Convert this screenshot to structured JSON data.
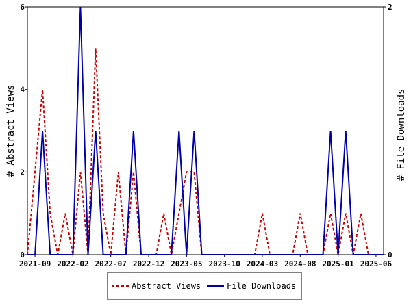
{
  "chart_data": {
    "type": "line",
    "x_ticks": [
      "2021-09",
      "2022-02",
      "2022-07",
      "2022-12",
      "2023-05",
      "2023-10",
      "2024-03",
      "2024-08",
      "2025-01",
      "2025-06"
    ],
    "ylabel_left": "# Abstract Views",
    "ylabel_right": "# File Downloads",
    "ylim_left": [
      0,
      6
    ],
    "ylim_right": [
      0,
      2
    ],
    "yticks_left": [
      "0",
      "2",
      "4",
      "6"
    ],
    "yticks_right": [
      "0",
      "2"
    ],
    "legend_position": "bottom",
    "grid": false,
    "series": [
      {
        "name": "Abstract Views",
        "axis": "left",
        "color": "#cc0000",
        "style": "dashed",
        "points": [
          [
            "2021-08",
            0
          ],
          [
            "2021-10",
            4
          ],
          [
            "2021-11",
            1
          ],
          [
            "2021-12",
            0
          ],
          [
            "2022-01",
            1
          ],
          [
            "2022-02",
            0
          ],
          [
            "2022-03",
            2
          ],
          [
            "2022-04",
            0
          ],
          [
            "2022-05",
            5
          ],
          [
            "2022-06",
            1
          ],
          [
            "2022-07",
            0
          ],
          [
            "2022-08",
            2
          ],
          [
            "2022-09",
            0
          ],
          [
            "2022-10",
            2
          ],
          [
            "2022-11",
            0
          ],
          [
            "2022-12",
            0
          ],
          [
            "2023-01",
            0
          ],
          [
            "2023-02",
            1
          ],
          [
            "2023-03",
            0
          ],
          [
            "2023-04",
            1
          ],
          [
            "2023-05",
            2
          ],
          [
            "2023-06",
            2
          ],
          [
            "2023-07",
            0
          ],
          [
            "2023-08",
            0
          ],
          [
            "2024-02",
            0
          ],
          [
            "2024-03",
            1
          ],
          [
            "2024-04",
            0
          ],
          [
            "2024-07",
            0
          ],
          [
            "2024-08",
            1
          ],
          [
            "2024-09",
            0
          ],
          [
            "2024-11",
            0
          ],
          [
            "2024-12",
            1
          ],
          [
            "2025-01",
            0
          ],
          [
            "2025-02",
            1
          ],
          [
            "2025-03",
            0
          ],
          [
            "2025-04",
            1
          ],
          [
            "2025-05",
            0
          ],
          [
            "2025-07",
            0
          ]
        ]
      },
      {
        "name": "File Downloads",
        "axis": "right",
        "color": "#0000aa",
        "style": "solid",
        "points": [
          [
            "2021-08",
            0
          ],
          [
            "2021-09",
            0
          ],
          [
            "2021-10",
            1
          ],
          [
            "2021-11",
            0
          ],
          [
            "2022-02",
            0
          ],
          [
            "2022-03",
            2
          ],
          [
            "2022-04",
            0
          ],
          [
            "2022-05",
            1
          ],
          [
            "2022-06",
            0
          ],
          [
            "2022-09",
            0
          ],
          [
            "2022-10",
            1
          ],
          [
            "2022-11",
            0
          ],
          [
            "2023-03",
            0
          ],
          [
            "2023-04",
            1
          ],
          [
            "2023-05",
            0
          ],
          [
            "2023-06",
            1
          ],
          [
            "2023-07",
            0
          ],
          [
            "2024-11",
            0
          ],
          [
            "2024-12",
            1
          ],
          [
            "2025-01",
            0
          ],
          [
            "2025-02",
            1
          ],
          [
            "2025-03",
            0
          ],
          [
            "2025-07",
            0
          ]
        ]
      }
    ]
  }
}
